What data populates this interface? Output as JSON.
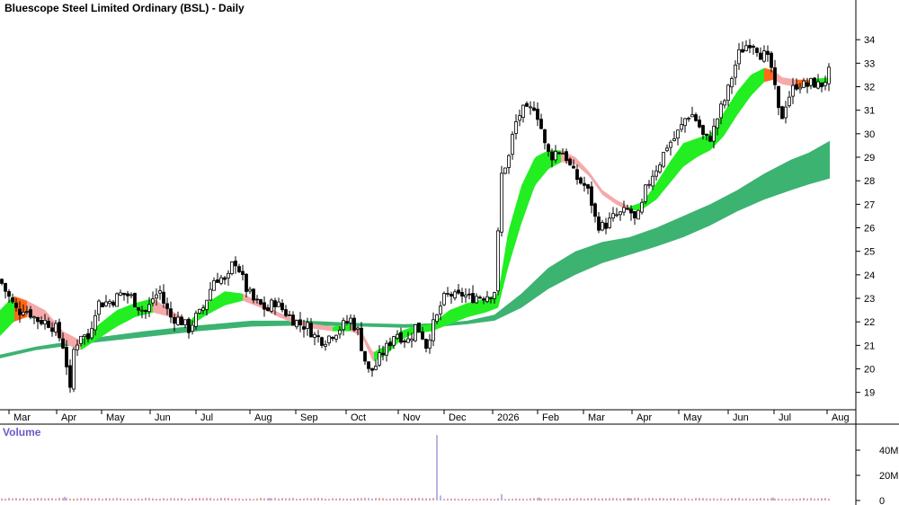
{
  "chart_data": {
    "type": "candlestick",
    "title": "Bluescope Steel Limited Ordinary (BSL) - Daily",
    "y_axis": {
      "ticks": [
        19,
        20,
        21,
        22,
        23,
        24,
        25,
        26,
        27,
        28,
        29,
        30,
        31,
        32,
        33,
        34
      ],
      "tick_labels": [
        "19",
        "20",
        "21",
        "22",
        "23",
        "24",
        "25",
        "26",
        "27",
        "28",
        "29",
        "30",
        "31",
        "32",
        "33",
        "34"
      ],
      "range": [
        18.3,
        35.0
      ],
      "position": "right"
    },
    "x_axis": {
      "months": [
        "Mar",
        "Apr",
        "May",
        "Jun",
        "Jul",
        "Aug",
        "Sep",
        "Oct",
        "Nov",
        "Dec",
        "2026",
        "Feb",
        "Mar",
        "Apr",
        "May",
        "Jun",
        "Jul",
        "Aug"
      ]
    },
    "price_path": [
      [
        0,
        23.8
      ],
      [
        5,
        23.4
      ],
      [
        12,
        22.9
      ],
      [
        20,
        22.4
      ],
      [
        26,
        22.6
      ],
      [
        33,
        22.4
      ],
      [
        40,
        22.1
      ],
      [
        52,
        22.0
      ],
      [
        62,
        21.7
      ],
      [
        70,
        21.0
      ],
      [
        75,
        20.0
      ],
      [
        78,
        19.0
      ],
      [
        82,
        20.8
      ],
      [
        90,
        21.5
      ],
      [
        98,
        21.3
      ],
      [
        108,
        22.8
      ],
      [
        115,
        22.8
      ],
      [
        125,
        22.9
      ],
      [
        135,
        23.2
      ],
      [
        145,
        23.1
      ],
      [
        155,
        22.6
      ],
      [
        163,
        22.4
      ],
      [
        170,
        23.0
      ],
      [
        178,
        23.3
      ],
      [
        183,
        22.7
      ],
      [
        190,
        22.2
      ],
      [
        200,
        22.1
      ],
      [
        210,
        21.7
      ],
      [
        218,
        22.2
      ],
      [
        224,
        22.4
      ],
      [
        230,
        23.0
      ],
      [
        238,
        23.8
      ],
      [
        245,
        23.9
      ],
      [
        252,
        23.6
      ],
      [
        258,
        24.4
      ],
      [
        263,
        24.6
      ],
      [
        268,
        24.0
      ],
      [
        274,
        23.4
      ],
      [
        282,
        22.9
      ],
      [
        290,
        22.7
      ],
      [
        298,
        22.5
      ],
      [
        305,
        22.9
      ],
      [
        312,
        22.6
      ],
      [
        318,
        22.4
      ],
      [
        326,
        22.1
      ],
      [
        334,
        21.9
      ],
      [
        342,
        21.8
      ],
      [
        350,
        21.4
      ],
      [
        360,
        21.2
      ],
      [
        370,
        21.5
      ],
      [
        380,
        21.8
      ],
      [
        390,
        22.1
      ],
      [
        398,
        21.6
      ],
      [
        405,
        20.5
      ],
      [
        410,
        19.9
      ],
      [
        416,
        20.0
      ],
      [
        424,
        20.6
      ],
      [
        432,
        21.0
      ],
      [
        440,
        21.6
      ],
      [
        448,
        21.3
      ],
      [
        455,
        21.2
      ],
      [
        462,
        21.8
      ],
      [
        468,
        21.6
      ],
      [
        474,
        21.0
      ],
      [
        480,
        21.7
      ],
      [
        486,
        22.2
      ],
      [
        492,
        22.9
      ],
      [
        500,
        23.2
      ],
      [
        508,
        23.0
      ],
      [
        515,
        23.2
      ],
      [
        522,
        23.0
      ],
      [
        530,
        23.1
      ],
      [
        538,
        23.1
      ],
      [
        546,
        23.2
      ],
      [
        552,
        23.4
      ],
      [
        556,
        28.0
      ],
      [
        560,
        28.5
      ],
      [
        566,
        29.0
      ],
      [
        572,
        30.3
      ],
      [
        580,
        31.0
      ],
      [
        588,
        30.9
      ],
      [
        594,
        31.2
      ],
      [
        600,
        30.6
      ],
      [
        606,
        29.5
      ],
      [
        612,
        29.0
      ],
      [
        620,
        29.3
      ],
      [
        628,
        29.2
      ],
      [
        636,
        28.4
      ],
      [
        644,
        28.0
      ],
      [
        650,
        27.8
      ],
      [
        656,
        27.4
      ],
      [
        662,
        26.4
      ],
      [
        668,
        26.0
      ],
      [
        676,
        26.2
      ],
      [
        684,
        26.5
      ],
      [
        692,
        26.6
      ],
      [
        700,
        26.8
      ],
      [
        706,
        26.3
      ],
      [
        712,
        26.6
      ],
      [
        718,
        27.6
      ],
      [
        726,
        28.3
      ],
      [
        734,
        28.8
      ],
      [
        742,
        29.5
      ],
      [
        750,
        29.8
      ],
      [
        758,
        30.3
      ],
      [
        764,
        30.8
      ],
      [
        770,
        30.8
      ],
      [
        776,
        30.5
      ],
      [
        782,
        29.9
      ],
      [
        788,
        29.7
      ],
      [
        794,
        30.2
      ],
      [
        800,
        30.9
      ],
      [
        808,
        31.6
      ],
      [
        816,
        32.7
      ],
      [
        822,
        33.4
      ],
      [
        828,
        33.7
      ],
      [
        834,
        33.9
      ],
      [
        840,
        33.8
      ],
      [
        846,
        33.4
      ],
      [
        852,
        33.3
      ],
      [
        858,
        32.8
      ],
      [
        863,
        31.6
      ],
      [
        868,
        30.5
      ],
      [
        874,
        31.3
      ],
      [
        880,
        31.8
      ],
      [
        888,
        32.2
      ],
      [
        896,
        32.0
      ],
      [
        904,
        32.2
      ],
      [
        912,
        32.0
      ],
      [
        918,
        32.3
      ],
      [
        922,
        32.6
      ],
      [
        925,
        33.4
      ]
    ],
    "ema_long_band": {
      "top": [
        [
          0,
          20.6
        ],
        [
          40,
          20.95
        ],
        [
          100,
          21.3
        ],
        [
          160,
          21.6
        ],
        [
          220,
          21.85
        ],
        [
          280,
          22.05
        ],
        [
          340,
          22.05
        ],
        [
          400,
          21.95
        ],
        [
          450,
          21.9
        ],
        [
          490,
          21.95
        ],
        [
          520,
          22.05
        ],
        [
          550,
          22.3
        ],
        [
          580,
          23.2
        ],
        [
          610,
          24.3
        ],
        [
          640,
          25.0
        ],
        [
          670,
          25.4
        ],
        [
          700,
          25.6
        ],
        [
          730,
          26.0
        ],
        [
          760,
          26.5
        ],
        [
          790,
          27.0
        ],
        [
          820,
          27.6
        ],
        [
          850,
          28.3
        ],
        [
          880,
          28.9
        ],
        [
          900,
          29.2
        ],
        [
          923,
          29.7
        ]
      ],
      "bottom": [
        [
          0,
          20.45
        ],
        [
          40,
          20.8
        ],
        [
          100,
          21.1
        ],
        [
          160,
          21.35
        ],
        [
          220,
          21.6
        ],
        [
          280,
          21.8
        ],
        [
          340,
          21.85
        ],
        [
          400,
          21.8
        ],
        [
          450,
          21.75
        ],
        [
          490,
          21.8
        ],
        [
          520,
          21.9
        ],
        [
          550,
          22.05
        ],
        [
          580,
          22.6
        ],
        [
          610,
          23.4
        ],
        [
          640,
          24.0
        ],
        [
          670,
          24.5
        ],
        [
          700,
          24.85
        ],
        [
          730,
          25.2
        ],
        [
          760,
          25.6
        ],
        [
          790,
          26.1
        ],
        [
          820,
          26.7
        ],
        [
          850,
          27.2
        ],
        [
          880,
          27.6
        ],
        [
          900,
          27.85
        ],
        [
          923,
          28.1
        ]
      ]
    },
    "ema_short_band": {
      "top": [
        [
          0,
          22.5
        ],
        [
          15,
          23.1
        ],
        [
          30,
          22.9
        ],
        [
          50,
          22.5
        ],
        [
          70,
          21.6
        ],
        [
          90,
          21.2
        ],
        [
          110,
          21.9
        ],
        [
          130,
          22.5
        ],
        [
          150,
          22.8
        ],
        [
          170,
          23.0
        ],
        [
          190,
          22.5
        ],
        [
          210,
          22.0
        ],
        [
          230,
          22.8
        ],
        [
          250,
          23.3
        ],
        [
          270,
          23.2
        ],
        [
          290,
          22.8
        ],
        [
          310,
          22.4
        ],
        [
          330,
          22.1
        ],
        [
          350,
          21.9
        ],
        [
          370,
          21.8
        ],
        [
          390,
          21.9
        ],
        [
          402,
          21.6
        ],
        [
          415,
          20.7
        ],
        [
          430,
          21.0
        ],
        [
          445,
          21.6
        ],
        [
          460,
          21.8
        ],
        [
          480,
          21.9
        ],
        [
          500,
          22.5
        ],
        [
          520,
          22.8
        ],
        [
          540,
          23.0
        ],
        [
          554,
          23.2
        ],
        [
          565,
          25.8
        ],
        [
          580,
          27.8
        ],
        [
          595,
          29.0
        ],
        [
          610,
          29.3
        ],
        [
          625,
          29.3
        ],
        [
          640,
          29.0
        ],
        [
          655,
          28.4
        ],
        [
          670,
          27.6
        ],
        [
          685,
          27.2
        ],
        [
          700,
          26.9
        ],
        [
          715,
          27.1
        ],
        [
          730,
          27.9
        ],
        [
          745,
          28.8
        ],
        [
          760,
          29.6
        ],
        [
          775,
          29.8
        ],
        [
          790,
          30.0
        ],
        [
          805,
          30.9
        ],
        [
          820,
          31.8
        ],
        [
          835,
          32.5
        ],
        [
          850,
          32.8
        ],
        [
          860,
          32.7
        ],
        [
          870,
          32.4
        ],
        [
          885,
          32.3
        ],
        [
          900,
          32.3
        ],
        [
          923,
          32.4
        ]
      ],
      "bottom": [
        [
          0,
          21.4
        ],
        [
          15,
          22.0
        ],
        [
          30,
          22.2
        ],
        [
          50,
          22.1
        ],
        [
          70,
          21.1
        ],
        [
          90,
          20.8
        ],
        [
          110,
          21.3
        ],
        [
          130,
          21.8
        ],
        [
          150,
          22.2
        ],
        [
          170,
          22.4
        ],
        [
          190,
          22.2
        ],
        [
          210,
          21.8
        ],
        [
          230,
          22.3
        ],
        [
          250,
          22.7
        ],
        [
          270,
          22.9
        ],
        [
          290,
          22.6
        ],
        [
          310,
          22.2
        ],
        [
          330,
          21.9
        ],
        [
          350,
          21.7
        ],
        [
          370,
          21.6
        ],
        [
          390,
          21.6
        ],
        [
          402,
          21.4
        ],
        [
          415,
          20.3
        ],
        [
          430,
          20.6
        ],
        [
          445,
          21.2
        ],
        [
          460,
          21.5
        ],
        [
          480,
          21.6
        ],
        [
          500,
          21.9
        ],
        [
          520,
          22.2
        ],
        [
          540,
          22.4
        ],
        [
          554,
          22.6
        ],
        [
          565,
          24.3
        ],
        [
          580,
          26.2
        ],
        [
          595,
          27.8
        ],
        [
          610,
          28.5
        ],
        [
          625,
          28.8
        ],
        [
          640,
          28.7
        ],
        [
          655,
          28.2
        ],
        [
          670,
          27.4
        ],
        [
          685,
          27.0
        ],
        [
          700,
          26.7
        ],
        [
          715,
          26.8
        ],
        [
          730,
          27.2
        ],
        [
          745,
          27.9
        ],
        [
          760,
          28.6
        ],
        [
          775,
          29.0
        ],
        [
          790,
          29.3
        ],
        [
          805,
          29.9
        ],
        [
          820,
          30.8
        ],
        [
          835,
          31.6
        ],
        [
          850,
          32.2
        ],
        [
          860,
          32.3
        ],
        [
          870,
          32.1
        ],
        [
          885,
          32.0
        ],
        [
          900,
          32.0
        ],
        [
          923,
          32.2
        ]
      ]
    },
    "volume": {
      "title": "Volume",
      "tick_labels": [
        "0",
        "20M",
        "40M"
      ],
      "ticks": [
        0,
        20,
        40
      ],
      "range": [
        0,
        55
      ],
      "spikes": [
        [
          486,
          52
        ],
        [
          490,
          4
        ],
        [
          558,
          5
        ],
        [
          72,
          3
        ],
        [
          130,
          2
        ],
        [
          300,
          2
        ],
        [
          410,
          2
        ],
        [
          600,
          2.5
        ],
        [
          700,
          2
        ],
        [
          860,
          2.5
        ]
      ],
      "baseline": 1.3
    }
  }
}
